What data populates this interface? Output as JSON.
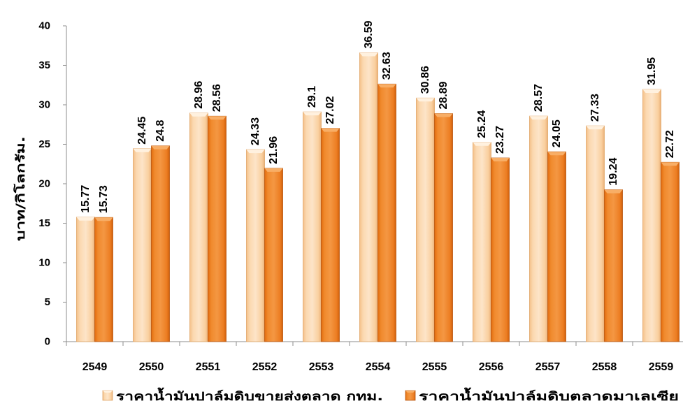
{
  "chart_data": {
    "type": "bar",
    "categories": [
      "2549",
      "2550",
      "2551",
      "2552",
      "2553",
      "2554",
      "2555",
      "2556",
      "2557",
      "2558",
      "2559"
    ],
    "series": [
      {
        "name": "ราคาน้ำมันปาล์มดิบขายส่งตลาด กทม.",
        "color": "#FAD3A4",
        "values": [
          15.77,
          24.45,
          28.96,
          24.33,
          29.1,
          36.59,
          30.86,
          25.24,
          28.57,
          27.33,
          31.95
        ]
      },
      {
        "name": "ราคาน้ำมันปาล์มดิบตลาดมาเลเซีย",
        "color": "#F07F1E",
        "values": [
          15.73,
          24.8,
          28.56,
          21.96,
          27.02,
          32.63,
          28.89,
          23.27,
          24.05,
          19.24,
          22.72
        ]
      }
    ],
    "ylabel": "บาท/กิโลกรัม.",
    "ylim": [
      0,
      40
    ],
    "yticks": [
      0,
      5,
      10,
      15,
      20,
      25,
      30,
      35,
      40
    ],
    "grid": false,
    "legend": "bottom",
    "data_labels": true
  }
}
